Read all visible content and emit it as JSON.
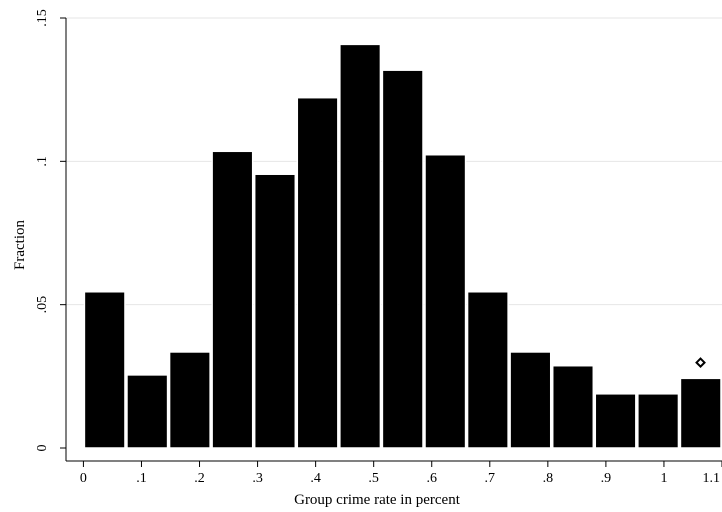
{
  "chart_data": {
    "type": "bar",
    "title": "",
    "xlabel": "Group crime rate in percent",
    "ylabel": "Fraction",
    "xlim": [
      -0.03,
      1.1
    ],
    "ylim": [
      0,
      0.15
    ],
    "xticks": [
      {
        "value": 0,
        "label": "0"
      },
      {
        "value": 0.1,
        "label": ".1"
      },
      {
        "value": 0.2,
        "label": ".2"
      },
      {
        "value": 0.3,
        "label": ".3"
      },
      {
        "value": 0.4,
        "label": ".4"
      },
      {
        "value": 0.5,
        "label": ".5"
      },
      {
        "value": 0.6,
        "label": ".6"
      },
      {
        "value": 0.7,
        "label": ".7"
      },
      {
        "value": 0.8,
        "label": ".8"
      },
      {
        "value": 0.9,
        "label": ".9"
      },
      {
        "value": 1,
        "label": "1"
      },
      {
        "value": 1.1,
        "label": "1.1"
      }
    ],
    "yticks": [
      {
        "value": 0,
        "label": "0"
      },
      {
        "value": 0.05,
        "label": ".05"
      },
      {
        "value": 0.1,
        "label": ".1"
      },
      {
        "value": 0.15,
        "label": ".15"
      }
    ],
    "grid": true,
    "bins": [
      {
        "from": 0.0,
        "to": 0.0733,
        "value": 0.0545
      },
      {
        "from": 0.0733,
        "to": 0.1467,
        "value": 0.0255
      },
      {
        "from": 0.1467,
        "to": 0.22,
        "value": 0.0335
      },
      {
        "from": 0.22,
        "to": 0.2933,
        "value": 0.1035
      },
      {
        "from": 0.2933,
        "to": 0.3667,
        "value": 0.0955
      },
      {
        "from": 0.3667,
        "to": 0.44,
        "value": 0.1222
      },
      {
        "from": 0.44,
        "to": 0.5133,
        "value": 0.1408
      },
      {
        "from": 0.5133,
        "to": 0.5867,
        "value": 0.1318
      },
      {
        "from": 0.5867,
        "to": 0.66,
        "value": 0.1023
      },
      {
        "from": 0.66,
        "to": 0.7333,
        "value": 0.0545
      },
      {
        "from": 0.7333,
        "to": 0.8067,
        "value": 0.0335
      },
      {
        "from": 0.8067,
        "to": 0.88,
        "value": 0.0287
      },
      {
        "from": 0.88,
        "to": 0.9533,
        "value": 0.0189
      },
      {
        "from": 0.9533,
        "to": 1.0267,
        "value": 0.0189
      },
      {
        "from": 1.0267,
        "to": 1.1,
        "value": 0.0243
      }
    ],
    "marker": {
      "x": 1.063,
      "y": 0.0298,
      "shape": "hollow-diamond"
    },
    "colors": {
      "bar_fill": "#000000",
      "bar_outline": "#ffffff",
      "grid": "#e6e6e6",
      "axis": "#000000"
    }
  }
}
